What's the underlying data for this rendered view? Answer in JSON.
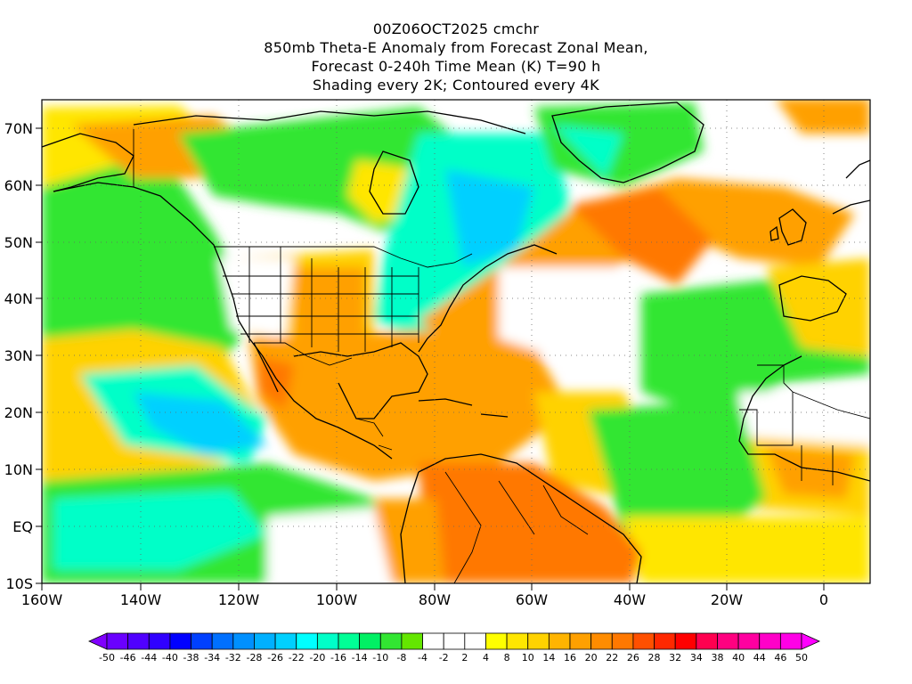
{
  "title": {
    "line1": "00Z06OCT2025 cmchr",
    "line2": "850mb Theta-E Anomaly from Forecast Zonal Mean,",
    "line3": "Forecast 0-240h Time Mean (K) T=90 h",
    "line4": "Shading every 2K; Contoured every 4K"
  },
  "map": {
    "lon_range": [
      -160,
      10
    ],
    "lat_range": [
      -10,
      75
    ],
    "lon_ticks": [
      "160W",
      "140W",
      "120W",
      "100W",
      "80W",
      "60W",
      "40W",
      "20W",
      "0"
    ],
    "lat_ticks": [
      "70N",
      "60N",
      "50N",
      "40N",
      "30N",
      "20N",
      "10N",
      "EQ",
      "10S"
    ],
    "gridlines": "dotted",
    "projection": "lat-lon"
  },
  "colorbar": {
    "labels": [
      "-50",
      "-46",
      "-44",
      "-40",
      "-38",
      "-34",
      "-32",
      "-28",
      "-26",
      "-22",
      "-20",
      "-16",
      "-14",
      "-10",
      "-8",
      "-4",
      "-2",
      "2",
      "4",
      "8",
      "10",
      "14",
      "16",
      "20",
      "22",
      "26",
      "28",
      "32",
      "34",
      "38",
      "40",
      "44",
      "46",
      "50"
    ],
    "colors": [
      "#8000ff",
      "#6a00ff",
      "#5000ff",
      "#3000ff",
      "#0000ff",
      "#0040ff",
      "#0070ff",
      "#0090ff",
      "#00b0ff",
      "#00d0ff",
      "#00ffff",
      "#00ffc8",
      "#00ff96",
      "#00f064",
      "#32e632",
      "#64e600",
      "#ffffff",
      "#ffffff",
      "#ffffff",
      "#ffff00",
      "#ffe600",
      "#ffd200",
      "#ffb400",
      "#ffa000",
      "#ff8c00",
      "#ff7800",
      "#ff5000",
      "#ff2800",
      "#ff0000",
      "#ff0050",
      "#ff0080",
      "#ff00a0",
      "#ff00c8",
      "#ff00e6",
      "#ff00ff"
    ]
  },
  "palette": {
    "green": "#32e632",
    "teal": "#00ffc8",
    "cyan": "#00d0ff",
    "blue": "#0090ff",
    "yellow": "#ffff00",
    "gold": "#ffd200",
    "orange": "#ffa000",
    "darkorange": "#ff7800",
    "white": "#ffffff",
    "coast": "#000000"
  }
}
